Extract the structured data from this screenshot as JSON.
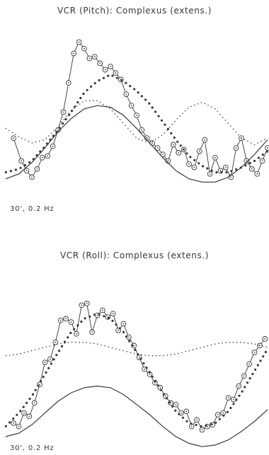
{
  "colors": {
    "ink": "#3a3636",
    "background": "#ffffff"
  },
  "chart_data": [
    {
      "type": "line",
      "title": "VCR (Pitch): Complexus (extens.)",
      "caption": "30', 0.2 Hz",
      "xlabel": "",
      "ylabel": "",
      "grid": false,
      "xlim": [
        0,
        1
      ],
      "ylim": [
        0,
        1
      ],
      "series": [
        {
          "role": "measured (circles + solid line)",
          "x": [
            0.03,
            0.06,
            0.08,
            0.1,
            0.12,
            0.14,
            0.16,
            0.18,
            0.2,
            0.22,
            0.24,
            0.26,
            0.28,
            0.3,
            0.32,
            0.34,
            0.36,
            0.38,
            0.4,
            0.42,
            0.44,
            0.46,
            0.48,
            0.5,
            0.52,
            0.54,
            0.56,
            0.58,
            0.6,
            0.62,
            0.64,
            0.66,
            0.68,
            0.7,
            0.72,
            0.74,
            0.76,
            0.78,
            0.8,
            0.82,
            0.84,
            0.86,
            0.88,
            0.9,
            0.92,
            0.94,
            0.96,
            0.98,
            1.0
          ],
          "y": [
            0.36,
            0.22,
            0.16,
            0.12,
            0.17,
            0.24,
            0.25,
            0.31,
            0.41,
            0.52,
            0.7,
            0.88,
            0.95,
            0.91,
            0.85,
            0.86,
            0.82,
            0.78,
            0.8,
            0.76,
            0.72,
            0.63,
            0.56,
            0.5,
            0.41,
            0.36,
            0.33,
            0.3,
            0.26,
            0.22,
            0.32,
            0.27,
            0.29,
            0.2,
            0.18,
            0.28,
            0.35,
            0.14,
            0.24,
            0.16,
            0.18,
            0.12,
            0.3,
            0.36,
            0.22,
            0.17,
            0.14,
            0.22,
            0.3
          ]
        },
        {
          "role": "model fit (bold dotted)",
          "x": [
            0.0,
            0.05,
            0.1,
            0.15,
            0.2,
            0.25,
            0.3,
            0.35,
            0.4,
            0.45,
            0.5,
            0.55,
            0.6,
            0.65,
            0.7,
            0.75,
            0.8,
            0.85,
            0.9,
            0.95,
            1.0
          ],
          "y": [
            0.15,
            0.17,
            0.22,
            0.31,
            0.41,
            0.52,
            0.64,
            0.71,
            0.75,
            0.71,
            0.65,
            0.57,
            0.46,
            0.35,
            0.25,
            0.19,
            0.15,
            0.15,
            0.18,
            0.22,
            0.28
          ]
        },
        {
          "role": "component (fine dotted)",
          "x": [
            0.0,
            0.05,
            0.1,
            0.15,
            0.2,
            0.25,
            0.3,
            0.35,
            0.4,
            0.45,
            0.5,
            0.55,
            0.6,
            0.65,
            0.7,
            0.75,
            0.8,
            0.85,
            0.9,
            0.95,
            1.0
          ],
          "y": [
            0.42,
            0.37,
            0.33,
            0.35,
            0.43,
            0.53,
            0.59,
            0.59,
            0.54,
            0.45,
            0.36,
            0.33,
            0.38,
            0.47,
            0.55,
            0.58,
            0.54,
            0.45,
            0.36,
            0.32,
            0.36
          ]
        },
        {
          "role": "stimulus (solid)",
          "x": [
            0.0,
            0.05,
            0.1,
            0.15,
            0.2,
            0.25,
            0.3,
            0.35,
            0.4,
            0.45,
            0.5,
            0.55,
            0.6,
            0.65,
            0.7,
            0.75,
            0.8,
            0.85,
            0.9,
            0.95,
            1.0
          ],
          "y": [
            0.11,
            0.14,
            0.21,
            0.3,
            0.4,
            0.48,
            0.54,
            0.56,
            0.55,
            0.5,
            0.42,
            0.33,
            0.24,
            0.16,
            0.11,
            0.09,
            0.09,
            0.12,
            0.18,
            0.26,
            0.35
          ]
        }
      ]
    },
    {
      "type": "line",
      "title": "VCR (Roll): Complexus (extens.)",
      "caption": "30', 0.2 Hz",
      "xlabel": "",
      "ylabel": "",
      "grid": false,
      "xlim": [
        0,
        1
      ],
      "ylim": [
        0,
        1
      ],
      "series": [
        {
          "role": "measured (circles + solid line)",
          "x": [
            0.03,
            0.05,
            0.07,
            0.09,
            0.11,
            0.13,
            0.15,
            0.17,
            0.19,
            0.21,
            0.23,
            0.25,
            0.27,
            0.29,
            0.31,
            0.33,
            0.35,
            0.37,
            0.39,
            0.41,
            0.43,
            0.45,
            0.47,
            0.49,
            0.51,
            0.53,
            0.55,
            0.57,
            0.59,
            0.61,
            0.63,
            0.65,
            0.67,
            0.69,
            0.71,
            0.73,
            0.75,
            0.77,
            0.79,
            0.81,
            0.83,
            0.85,
            0.87,
            0.89,
            0.91,
            0.93,
            0.95,
            0.97,
            0.99
          ],
          "y": [
            0.16,
            0.14,
            0.22,
            0.2,
            0.28,
            0.39,
            0.52,
            0.54,
            0.64,
            0.77,
            0.78,
            0.76,
            0.69,
            0.86,
            0.87,
            0.7,
            0.8,
            0.83,
            0.79,
            0.81,
            0.71,
            0.75,
            0.67,
            0.62,
            0.55,
            0.48,
            0.45,
            0.4,
            0.37,
            0.32,
            0.28,
            0.27,
            0.22,
            0.23,
            0.14,
            0.18,
            0.12,
            0.14,
            0.15,
            0.21,
            0.22,
            0.31,
            0.3,
            0.38,
            0.44,
            0.51,
            0.58,
            0.62,
            0.66
          ]
        },
        {
          "role": "model fit (bold dotted)",
          "x": [
            0.0,
            0.05,
            0.1,
            0.15,
            0.2,
            0.25,
            0.3,
            0.35,
            0.4,
            0.45,
            0.5,
            0.55,
            0.6,
            0.65,
            0.7,
            0.75,
            0.8,
            0.85,
            0.9,
            0.95,
            1.0
          ],
          "y": [
            0.14,
            0.22,
            0.32,
            0.45,
            0.58,
            0.7,
            0.78,
            0.81,
            0.78,
            0.7,
            0.58,
            0.46,
            0.34,
            0.23,
            0.16,
            0.14,
            0.16,
            0.23,
            0.34,
            0.47,
            0.6
          ]
        },
        {
          "role": "component (fine dotted)",
          "x": [
            0.0,
            0.05,
            0.1,
            0.15,
            0.2,
            0.25,
            0.3,
            0.35,
            0.4,
            0.45,
            0.5,
            0.55,
            0.6,
            0.65,
            0.7,
            0.75,
            0.8,
            0.85,
            0.9,
            0.95,
            1.0
          ],
          "y": [
            0.56,
            0.57,
            0.59,
            0.61,
            0.63,
            0.64,
            0.64,
            0.63,
            0.61,
            0.59,
            0.57,
            0.56,
            0.56,
            0.57,
            0.59,
            0.61,
            0.63,
            0.64,
            0.64,
            0.63,
            0.61
          ]
        },
        {
          "role": "stimulus (solid)",
          "x": [
            0.0,
            0.05,
            0.1,
            0.15,
            0.2,
            0.25,
            0.3,
            0.35,
            0.4,
            0.45,
            0.5,
            0.55,
            0.6,
            0.65,
            0.7,
            0.75,
            0.8,
            0.85,
            0.9,
            0.95,
            1.0
          ],
          "y": [
            0.08,
            0.1,
            0.15,
            0.22,
            0.29,
            0.34,
            0.37,
            0.38,
            0.37,
            0.33,
            0.27,
            0.21,
            0.14,
            0.08,
            0.04,
            0.02,
            0.03,
            0.06,
            0.11,
            0.17,
            0.24
          ]
        }
      ]
    }
  ]
}
